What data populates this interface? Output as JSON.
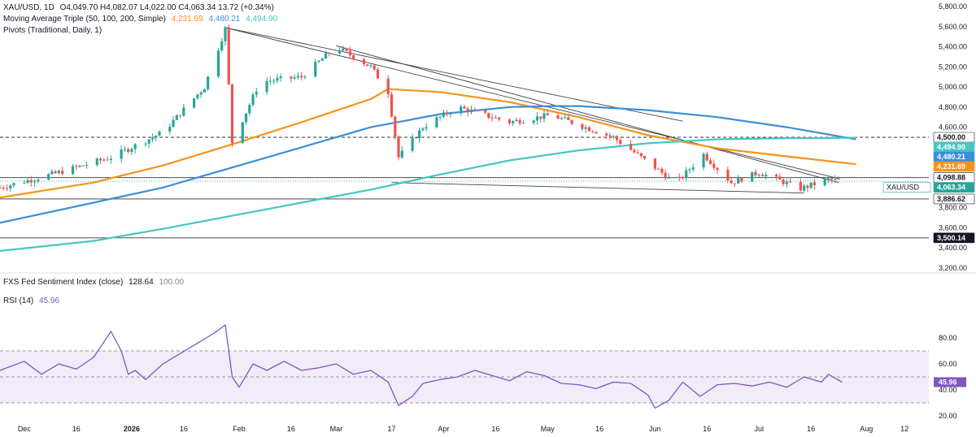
{
  "legend": {
    "symbol": "XAU/USD, 1D",
    "ohlc": "O4,049.70  H4,082.07  L4,022.00  C4,063.34  13.72 (+0.34%)",
    "ma_title": "Moving Average Triple (50, 100, 200, Simple)",
    "ma50": "4,231.69",
    "ma100": "4,480.21",
    "ma200": "4,494.90",
    "pivots": "Pivots (Traditional, Daily, 1)",
    "fed_title": "FXS Fed Sentiment Index (close)",
    "fed_v1": "128.64",
    "fed_v2": "100.00",
    "rsi_title": "RSI (14)",
    "rsi_value": "45.96"
  },
  "colors": {
    "up": "#26a69a",
    "down": "#ef5350",
    "ma50": "#f7931a",
    "ma100": "#3d8ed9",
    "ma200": "#45c7c1",
    "rsi": "#7e57c2",
    "rsi_band": "#ede7f6"
  },
  "chart_data": [
    {
      "type": "candlestick",
      "title": "XAU/USD, 1D",
      "ylim": [
        3200,
        5800
      ],
      "y_ticks": [
        "3,200.00",
        "3,400.00",
        "3,600.00",
        "3,800.00",
        "4,000.00",
        "4,200.00",
        "4,400.00",
        "4,600.00",
        "4,800.00",
        "5,000.00",
        "5,200.00",
        "5,400.00",
        "5,600.00",
        "5,800.00"
      ],
      "y_tick_values": [
        3200,
        3400,
        3600,
        3800,
        4000,
        4200,
        4400,
        4600,
        4800,
        5000,
        5200,
        5400,
        5600,
        5800
      ],
      "x_labels": [
        "Dec",
        "16",
        "2026",
        "16",
        "Feb",
        "16",
        "Mar",
        "17",
        "Apr",
        "16",
        "May",
        "16",
        "Jun",
        "16",
        "Jul",
        "16",
        "Aug",
        "12"
      ],
      "x_label_days": [
        0,
        15,
        31,
        46,
        62,
        77,
        90,
        106,
        121,
        136,
        151,
        166,
        182,
        197,
        212,
        227,
        243,
        254
      ],
      "x_start_day": -7,
      "x_end_day": 261,
      "key_points": [
        {
          "day": -7,
          "price": 4000
        },
        {
          "day": 10,
          "price": 4150
        },
        {
          "day": 25,
          "price": 4300
        },
        {
          "day": 40,
          "price": 4550
        },
        {
          "day": 52,
          "price": 5000
        },
        {
          "day": 58,
          "price": 5580
        },
        {
          "day": 60,
          "price": 4450
        },
        {
          "day": 68,
          "price": 5050
        },
        {
          "day": 80,
          "price": 5100
        },
        {
          "day": 90,
          "price": 5400
        },
        {
          "day": 100,
          "price": 5200
        },
        {
          "day": 105,
          "price": 4950
        },
        {
          "day": 108,
          "price": 4300
        },
        {
          "day": 115,
          "price": 4600
        },
        {
          "day": 125,
          "price": 4800
        },
        {
          "day": 140,
          "price": 4650
        },
        {
          "day": 152,
          "price": 4720
        },
        {
          "day": 170,
          "price": 4500
        },
        {
          "day": 182,
          "price": 4200
        },
        {
          "day": 188,
          "price": 4040
        },
        {
          "day": 196,
          "price": 4330
        },
        {
          "day": 204,
          "price": 4050
        },
        {
          "day": 212,
          "price": 4150
        },
        {
          "day": 224,
          "price": 3990
        },
        {
          "day": 232,
          "price": 4080
        },
        {
          "day": 236,
          "price": 4063.34
        }
      ],
      "series": [
        {
          "name": "SMA 50",
          "last": 4231.69,
          "x": [
            -7,
            20,
            40,
            60,
            80,
            100,
            105,
            120,
            140,
            160,
            180,
            200,
            220,
            240
          ],
          "y": [
            3900,
            4050,
            4220,
            4430,
            4650,
            4880,
            4980,
            4950,
            4850,
            4700,
            4520,
            4390,
            4310,
            4231.69
          ]
        },
        {
          "name": "SMA 100",
          "last": 4480.21,
          "x": [
            -7,
            20,
            40,
            60,
            80,
            100,
            120,
            140,
            152,
            160,
            180,
            200,
            220,
            240
          ],
          "y": [
            3650,
            3850,
            4000,
            4200,
            4400,
            4600,
            4730,
            4800,
            4810,
            4810,
            4770,
            4700,
            4600,
            4480.21
          ]
        },
        {
          "name": "SMA 200",
          "last": 4494.9,
          "x": [
            -7,
            20,
            40,
            60,
            80,
            100,
            120,
            140,
            160,
            180,
            200,
            220,
            240
          ],
          "y": [
            3370,
            3470,
            3590,
            3720,
            3850,
            3980,
            4130,
            4270,
            4370,
            4440,
            4480,
            4490,
            4494.9
          ]
        }
      ],
      "horizontal_lines": [
        {
          "value": 4500.0,
          "label": "4,500.00",
          "style": "dashed"
        },
        {
          "value": 4098.88,
          "label": "4,098.88",
          "style": "solid"
        },
        {
          "value": 3886.62,
          "label": "3,886.62",
          "style": "solid"
        },
        {
          "value": 3500.14,
          "label": "3,500.14",
          "style": "solid"
        }
      ],
      "trendlines": [
        {
          "x": [
            58,
            190
          ],
          "y": [
            5590,
            4660
          ]
        },
        {
          "x": [
            58,
            235
          ],
          "y": [
            5590,
            4090
          ]
        },
        {
          "x": [
            90,
            235
          ],
          "y": [
            5410,
            4050
          ]
        },
        {
          "x": [
            106,
            225
          ],
          "y": [
            4050,
            3945
          ]
        }
      ],
      "price_labels": [
        {
          "label": "4,494.90",
          "value": 4494.9,
          "color": "ma200"
        },
        {
          "label": "4,480.21",
          "value": 4480.21,
          "color": "ma100"
        },
        {
          "label": "4,231.69",
          "value": 4231.69,
          "color": "ma50"
        },
        {
          "label": "4,063.34",
          "value": 4063.34,
          "color": "last",
          "tag": "XAU/USD"
        }
      ]
    },
    {
      "type": "line",
      "title": "RSI (14)",
      "ylim": [
        15,
        95
      ],
      "y_ticks": [
        "20.00",
        "40.00",
        "60.00",
        "80.00"
      ],
      "y_tick_values": [
        20,
        40,
        60,
        80
      ],
      "bands": [
        70,
        50,
        30
      ],
      "last": 45.96,
      "x": [
        -7,
        0,
        5,
        10,
        15,
        20,
        25,
        28,
        30,
        32,
        35,
        40,
        45,
        50,
        55,
        58,
        60,
        62,
        66,
        70,
        75,
        80,
        85,
        90,
        95,
        100,
        105,
        108,
        112,
        115,
        120,
        125,
        130,
        135,
        140,
        145,
        150,
        155,
        160,
        165,
        170,
        175,
        180,
        182,
        186,
        190,
        195,
        200,
        205,
        210,
        215,
        220,
        225,
        230,
        232,
        236
      ],
      "y": [
        55,
        62,
        52,
        60,
        56,
        65,
        85,
        70,
        52,
        55,
        48,
        60,
        68,
        76,
        84,
        90,
        50,
        42,
        60,
        55,
        62,
        55,
        57,
        60,
        52,
        55,
        46,
        28,
        35,
        45,
        48,
        50,
        55,
        51,
        47,
        54,
        51,
        45,
        44,
        41,
        46,
        45,
        36,
        26,
        32,
        46,
        35,
        44,
        45,
        43,
        46,
        42,
        50,
        46,
        52,
        45.96
      ]
    }
  ]
}
